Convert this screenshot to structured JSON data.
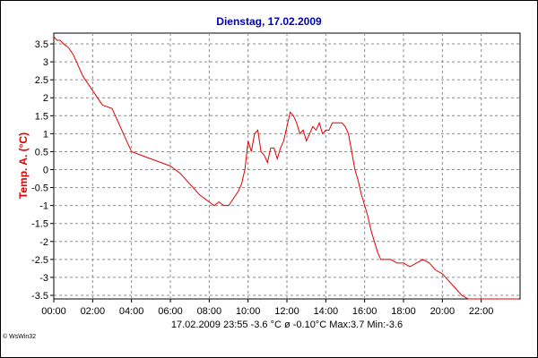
{
  "chart_data": {
    "type": "line",
    "title": "Dienstag, 17.02.2009",
    "ylabel": "Temp. A. (°C)",
    "xlabel": "",
    "x_tick_labels": [
      "00:00",
      "02:00",
      "04:00",
      "06:00",
      "08:00",
      "10:00",
      "12:00",
      "14:00",
      "16:00",
      "18:00",
      "20:00",
      "22:00"
    ],
    "y_ticks": [
      3.5,
      3,
      2.5,
      2,
      1.5,
      1,
      0.5,
      0,
      -0.5,
      -1,
      -1.5,
      -2,
      -2.5,
      -3,
      -3.5
    ],
    "y_tick_labels": [
      "3.5",
      "3",
      "2.5",
      "2",
      "1.5",
      "1",
      "0.5",
      "0",
      "-0.5",
      "-1",
      "-1.5",
      "-2",
      "-2.5",
      "-3",
      "-3.5"
    ],
    "xlim": [
      "00:00",
      "24:00"
    ],
    "ylim": [
      -3.6,
      3.8
    ],
    "grid": true,
    "line_color": "#e00000",
    "series": [
      {
        "x": [
          "00:00",
          "00:10",
          "00:20",
          "00:30",
          "00:45",
          "01:00",
          "01:15",
          "01:30",
          "01:45",
          "02:00",
          "02:30",
          "03:00",
          "03:20",
          "03:40",
          "04:00",
          "04:30",
          "05:00",
          "05:30",
          "06:00",
          "06:30",
          "07:00",
          "07:30",
          "08:00",
          "08:15",
          "08:30",
          "08:45",
          "09:00",
          "09:15",
          "09:30",
          "09:40",
          "09:50",
          "10:00",
          "10:10",
          "10:20",
          "10:30",
          "10:40",
          "10:50",
          "11:00",
          "11:10",
          "11:20",
          "11:30",
          "11:40",
          "11:50",
          "12:00",
          "12:10",
          "12:20",
          "12:30",
          "12:40",
          "12:50",
          "13:00",
          "13:10",
          "13:20",
          "13:30",
          "13:40",
          "13:50",
          "14:00",
          "14:10",
          "14:20",
          "14:30",
          "14:40",
          "14:50",
          "15:00",
          "15:10",
          "15:20",
          "15:30",
          "15:40",
          "15:50",
          "16:00",
          "16:10",
          "16:20",
          "16:30",
          "16:40",
          "16:50",
          "17:00",
          "17:20",
          "17:40",
          "18:00",
          "18:20",
          "18:40",
          "19:00",
          "19:20",
          "19:40",
          "20:00",
          "20:20",
          "20:40",
          "21:00",
          "21:20",
          "21:40",
          "22:00",
          "22:10",
          "22:20",
          "22:30",
          "22:45",
          "23:00",
          "23:15",
          "23:30",
          "23:45",
          "23:55"
        ],
        "y": [
          3.7,
          3.6,
          3.6,
          3.5,
          3.4,
          3.2,
          2.9,
          2.6,
          2.4,
          2.2,
          1.8,
          1.7,
          1.3,
          0.9,
          0.5,
          0.4,
          0.3,
          0.2,
          0.1,
          -0.1,
          -0.4,
          -0.7,
          -0.9,
          -1.0,
          -0.9,
          -1.0,
          -1.0,
          -0.8,
          -0.6,
          -0.4,
          0.0,
          0.8,
          0.5,
          1.0,
          1.1,
          0.5,
          0.4,
          0.2,
          0.6,
          0.6,
          0.3,
          0.6,
          0.8,
          1.2,
          1.6,
          1.5,
          1.3,
          1.0,
          1.1,
          0.8,
          1.0,
          1.2,
          1.1,
          1.3,
          1.0,
          1.1,
          1.1,
          1.3,
          1.3,
          1.3,
          1.3,
          1.2,
          1.0,
          0.5,
          0.0,
          -0.3,
          -0.7,
          -1.0,
          -1.3,
          -1.7,
          -2.0,
          -2.3,
          -2.5,
          -2.5,
          -2.5,
          -2.6,
          -2.6,
          -2.7,
          -2.6,
          -2.5,
          -2.6,
          -2.8,
          -2.9,
          -3.1,
          -3.3,
          -3.5,
          -3.6,
          -3.6,
          -3.6,
          -3.6,
          -3.6,
          -3.6,
          -3.6,
          -3.6,
          -3.6,
          -3.6,
          -3.6,
          -3.6
        ]
      }
    ]
  },
  "footer": {
    "text": "17.02.2009  23:55   -3.6 °C   ø -0.10°C  Max:3.7  Min:-3.6"
  },
  "brand": "© WsWin32"
}
